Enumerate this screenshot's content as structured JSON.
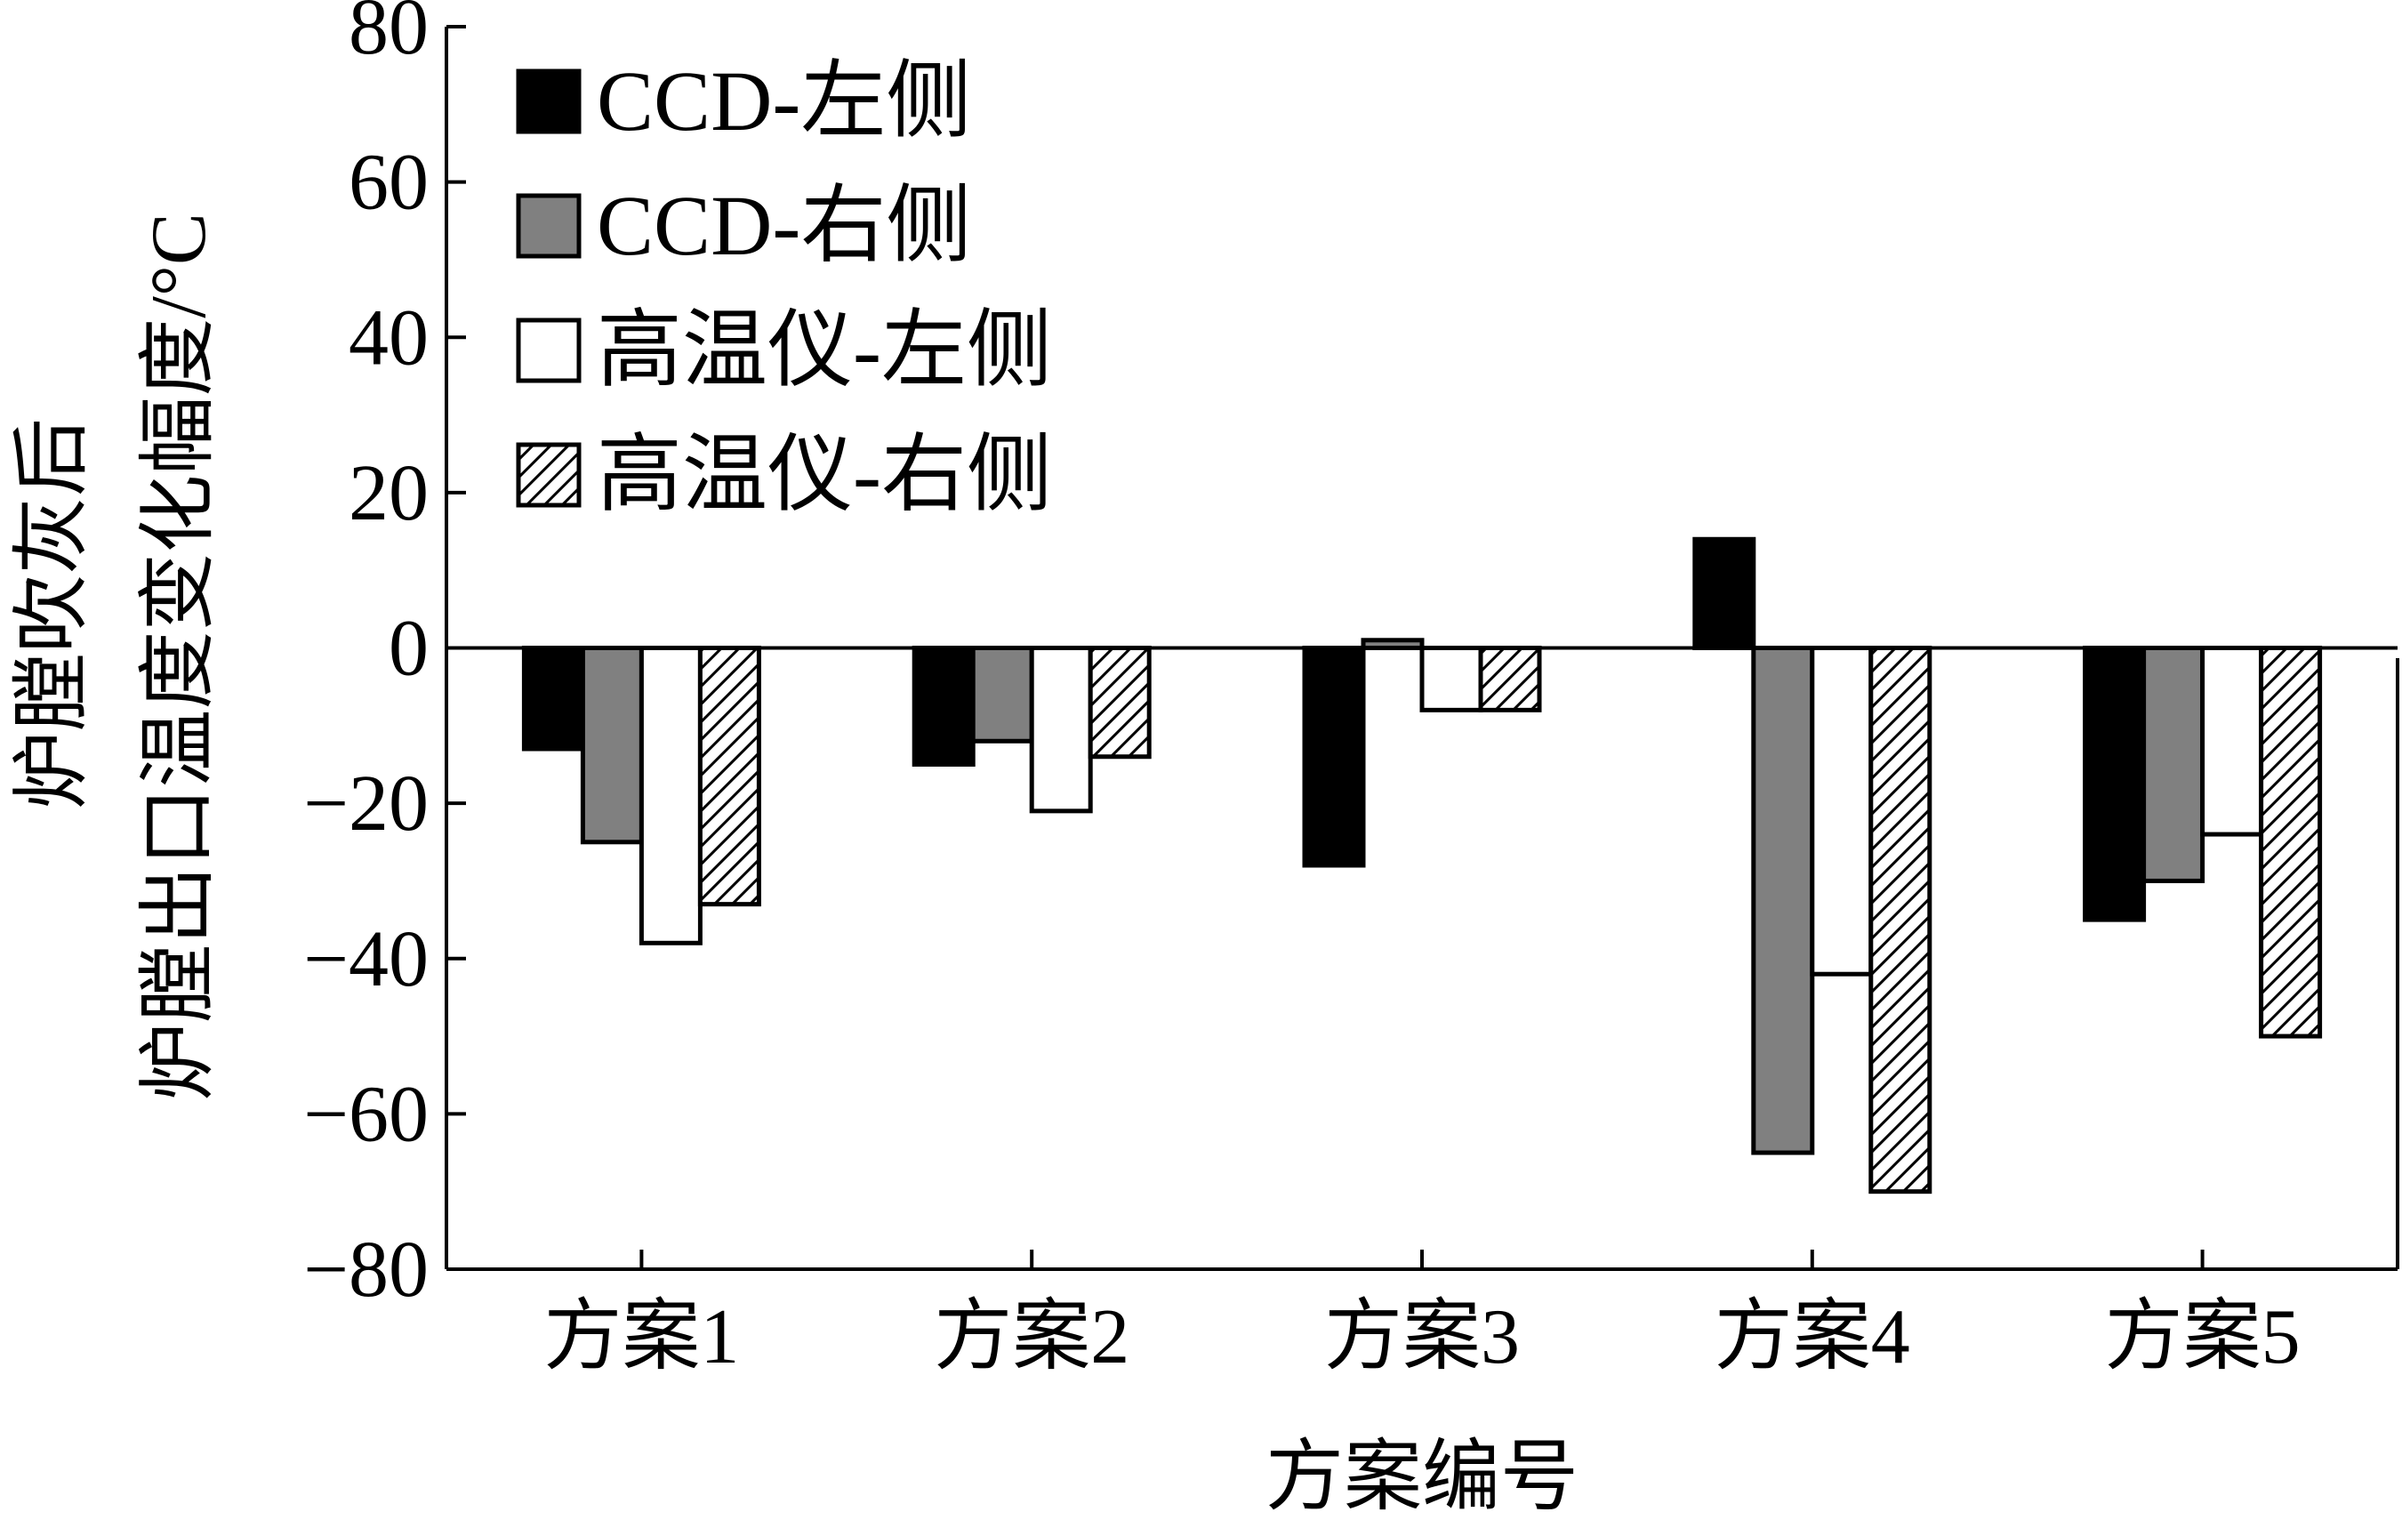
{
  "chart_data": {
    "type": "bar",
    "title": "",
    "xlabel": "方案编号",
    "ylabel_lines": [
      "炉膛吹灰后",
      "炉膛出口温度变化幅度/°C"
    ],
    "ylim": [
      -80,
      80
    ],
    "yticks": [
      80,
      60,
      40,
      20,
      0,
      -20,
      -40,
      -60,
      -80
    ],
    "ytick_labels": [
      "80",
      "60",
      "40",
      "20",
      "0",
      "−20",
      "−40",
      "−60",
      "−80"
    ],
    "categories": [
      "方案1",
      "方案2",
      "方案3",
      "方案4",
      "方案5"
    ],
    "legend_position": "top-left",
    "grid": false,
    "series": [
      {
        "name": "CCD-左侧",
        "fill": "solid",
        "color": "#000000",
        "values": [
          -13,
          -15,
          -28,
          14,
          -35
        ]
      },
      {
        "name": "CCD-右侧",
        "fill": "solid",
        "color": "#808080",
        "values": [
          -25,
          -12,
          1,
          -65,
          -30
        ]
      },
      {
        "name": "高温仪-左侧",
        "fill": "solid",
        "color": "#ffffff",
        "values": [
          -38,
          -21,
          -8,
          -42,
          -24
        ]
      },
      {
        "name": "高温仪-右侧",
        "fill": "hatch",
        "color": "#ffffff",
        "values": [
          -33,
          -14,
          -8,
          -70,
          -50
        ]
      }
    ]
  }
}
